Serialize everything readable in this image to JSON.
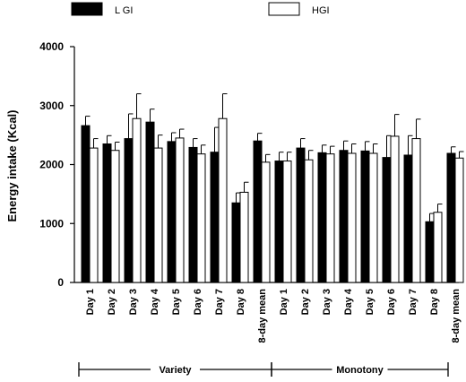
{
  "chart_data": {
    "type": "bar",
    "title": "",
    "xlabel": "",
    "ylabel": "Energy intake (Kcal)",
    "ylim": [
      0,
      4000
    ],
    "yticks": [
      0,
      1000,
      2000,
      3000,
      4000
    ],
    "legend_position": "top",
    "colors": {
      "L GI": "#000000",
      "HGI": "#ffffff"
    },
    "groups": [
      {
        "name": "Variety",
        "categories": [
          "Day 1",
          "Day 2",
          "Day 3",
          "Day 4",
          "Day 5",
          "Day 6",
          "Day 7",
          "Day 8",
          "8-day mean"
        ]
      },
      {
        "name": "Monotony",
        "categories": [
          "Day 1",
          "Day 2",
          "Day 3",
          "Day 4",
          "Day 5",
          "Day 6",
          "Day 7",
          "Day 8",
          "8-day mean"
        ]
      }
    ],
    "series": [
      {
        "name": "L GI",
        "values": [
          2660,
          2350,
          2440,
          2720,
          2390,
          2290,
          2210,
          1350,
          2400,
          2060,
          2280,
          2200,
          2240,
          2230,
          2120,
          2160,
          1030,
          2190
        ],
        "errors": [
          160,
          140,
          420,
          220,
          150,
          150,
          420,
          170,
          130,
          150,
          160,
          130,
          160,
          160,
          370,
          330,
          140,
          110
        ]
      },
      {
        "name": "HGI",
        "values": [
          2280,
          2240,
          2780,
          2280,
          2450,
          2180,
          2780,
          1530,
          2040,
          2060,
          2080,
          2180,
          2190,
          2190,
          2480,
          2440,
          1190,
          2110
        ],
        "errors": [
          160,
          140,
          420,
          220,
          150,
          150,
          420,
          170,
          130,
          150,
          160,
          130,
          160,
          160,
          370,
          330,
          140,
          110
        ]
      }
    ]
  }
}
